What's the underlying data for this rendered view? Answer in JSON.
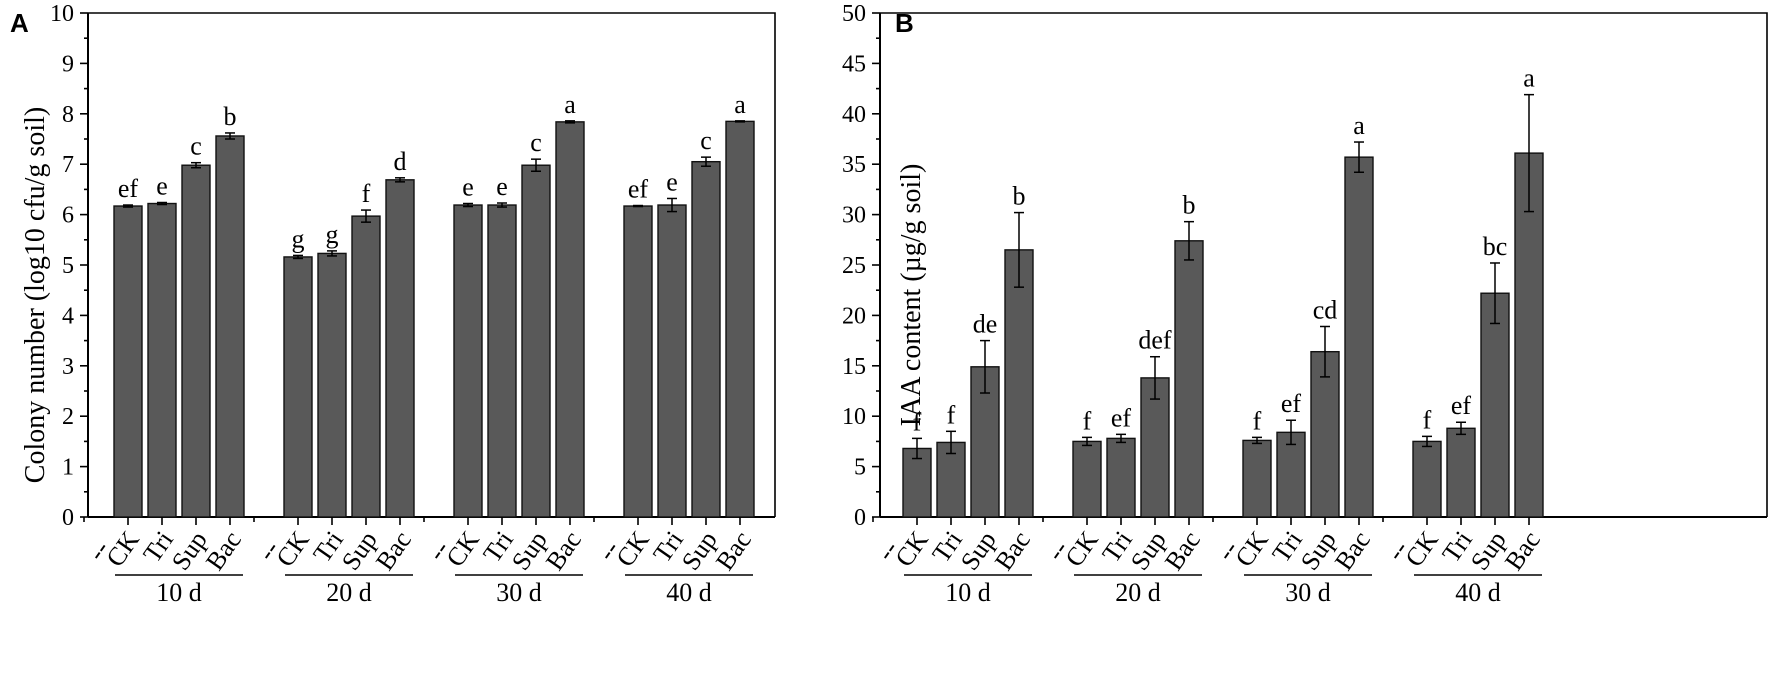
{
  "chart_data": [
    {
      "panel": "A",
      "type": "bar",
      "ylabel": "Colony number (log10 cfu/g soil)",
      "xlabel": "",
      "ylim": [
        0,
        10
      ],
      "yticks": [
        0,
        1,
        2,
        3,
        4,
        5,
        6,
        7,
        8,
        9,
        10
      ],
      "tick_labels": [
        "0",
        "1",
        "2",
        "3",
        "4",
        "5",
        "6",
        "7",
        "8",
        "9",
        "10"
      ],
      "groups": [
        {
          "label": "10 d",
          "separator": "--",
          "categories": [
            "CK",
            "Tri",
            "Sup",
            "Bac"
          ],
          "values": [
            6.17,
            6.22,
            6.98,
            7.56
          ],
          "errors": [
            0.02,
            0.02,
            0.05,
            0.06
          ],
          "letters": [
            "ef",
            "e",
            "c",
            "b"
          ]
        },
        {
          "label": "20 d",
          "separator": "--",
          "categories": [
            "CK",
            "Tri",
            "Sup",
            "Bac"
          ],
          "values": [
            5.16,
            5.23,
            5.97,
            6.69
          ],
          "errors": [
            0.03,
            0.05,
            0.12,
            0.04
          ],
          "letters": [
            "g",
            "g",
            "f",
            "d"
          ]
        },
        {
          "label": "30 d",
          "separator": "--",
          "categories": [
            "CK",
            "Tri",
            "Sup",
            "Bac"
          ],
          "values": [
            6.19,
            6.19,
            6.98,
            7.84
          ],
          "errors": [
            0.03,
            0.04,
            0.12,
            0.02
          ],
          "letters": [
            "e",
            "e",
            "c",
            "a"
          ]
        },
        {
          "label": "40 d",
          "separator": "--",
          "categories": [
            "CK",
            "Tri",
            "Sup",
            "Bac"
          ],
          "values": [
            6.17,
            6.19,
            7.05,
            7.85
          ],
          "errors": [
            0.01,
            0.13,
            0.09,
            0.01
          ],
          "letters": [
            "ef",
            "e",
            "c",
            "a"
          ]
        }
      ]
    },
    {
      "panel": "B",
      "type": "bar",
      "ylabel": "IAA content (µg/g soil)",
      "xlabel": "",
      "ylim": [
        0,
        50
      ],
      "yticks": [
        0,
        5,
        10,
        15,
        20,
        25,
        30,
        35,
        40,
        45,
        50
      ],
      "tick_labels": [
        "0",
        "5",
        "10",
        "15",
        "20",
        "25",
        "30",
        "35",
        "40",
        "45",
        "50"
      ],
      "groups": [
        {
          "label": "10 d",
          "separator": "--",
          "categories": [
            "CK",
            "Tri",
            "Sup",
            "Bac"
          ],
          "values": [
            6.8,
            7.4,
            14.9,
            26.5
          ],
          "errors": [
            1.0,
            1.1,
            2.6,
            3.7
          ],
          "letters": [
            "f",
            "f",
            "de",
            "b"
          ]
        },
        {
          "label": "20 d",
          "separator": "--",
          "categories": [
            "CK",
            "Tri",
            "Sup",
            "Bac"
          ],
          "values": [
            7.5,
            7.8,
            13.8,
            27.4
          ],
          "errors": [
            0.4,
            0.4,
            2.1,
            1.9
          ],
          "letters": [
            "f",
            "ef",
            "def",
            "b"
          ]
        },
        {
          "label": "30 d",
          "separator": "--",
          "categories": [
            "CK",
            "Tri",
            "Sup",
            "Bac"
          ],
          "values": [
            7.6,
            8.4,
            16.4,
            35.7
          ],
          "errors": [
            0.3,
            1.2,
            2.5,
            1.5
          ],
          "letters": [
            "f",
            "ef",
            "cd",
            "a"
          ]
        },
        {
          "label": "40 d",
          "separator": "--",
          "categories": [
            "CK",
            "Tri",
            "Sup",
            "Bac"
          ],
          "values": [
            7.5,
            8.8,
            22.2,
            36.1
          ],
          "errors": [
            0.5,
            0.6,
            3.0,
            5.8
          ],
          "letters": [
            "f",
            "ef",
            "bc",
            "a"
          ]
        }
      ]
    }
  ],
  "colors": {
    "bar_fill": "#595959",
    "bar_stroke": "#111111",
    "axis": "#000000"
  }
}
